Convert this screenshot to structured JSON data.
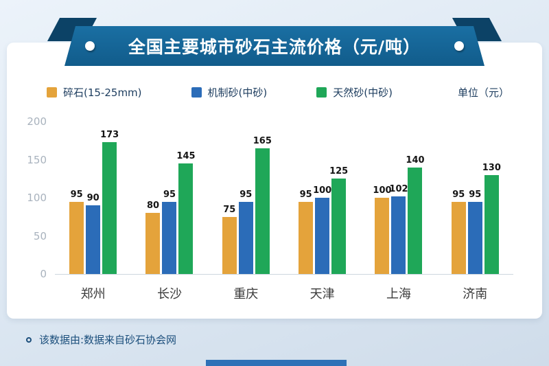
{
  "page": {
    "title": "全国主要城市砂石主流价格（元/吨）",
    "unit_label": "单位（元）",
    "footer_note": "该数据由:数据来自砂石协会网"
  },
  "colors": {
    "ribbon": "#115c8b",
    "crushed": "#E4A33B",
    "machine": "#2B6CB8",
    "natural": "#1FA758"
  },
  "chart_data": {
    "type": "bar",
    "title": "全国主要城市砂石主流价格（元/吨）",
    "unit": "元",
    "categories": [
      "郑州",
      "长沙",
      "重庆",
      "天津",
      "上海",
      "济南"
    ],
    "series": [
      {
        "name": "碎石(15-25mm)",
        "color_key": "crushed",
        "values": [
          95,
          80,
          75,
          95,
          100,
          95
        ]
      },
      {
        "name": "机制砂(中砂)",
        "color_key": "machine",
        "values": [
          90,
          95,
          95,
          100,
          102,
          95
        ]
      },
      {
        "name": "天然砂(中砂)",
        "color_key": "natural",
        "values": [
          173,
          145,
          165,
          125,
          140,
          130
        ]
      }
    ],
    "ylim": [
      0,
      200
    ],
    "yticks": [
      0,
      50,
      100,
      150,
      200
    ],
    "grid": false,
    "legend_position": "top",
    "value_labels": true
  }
}
